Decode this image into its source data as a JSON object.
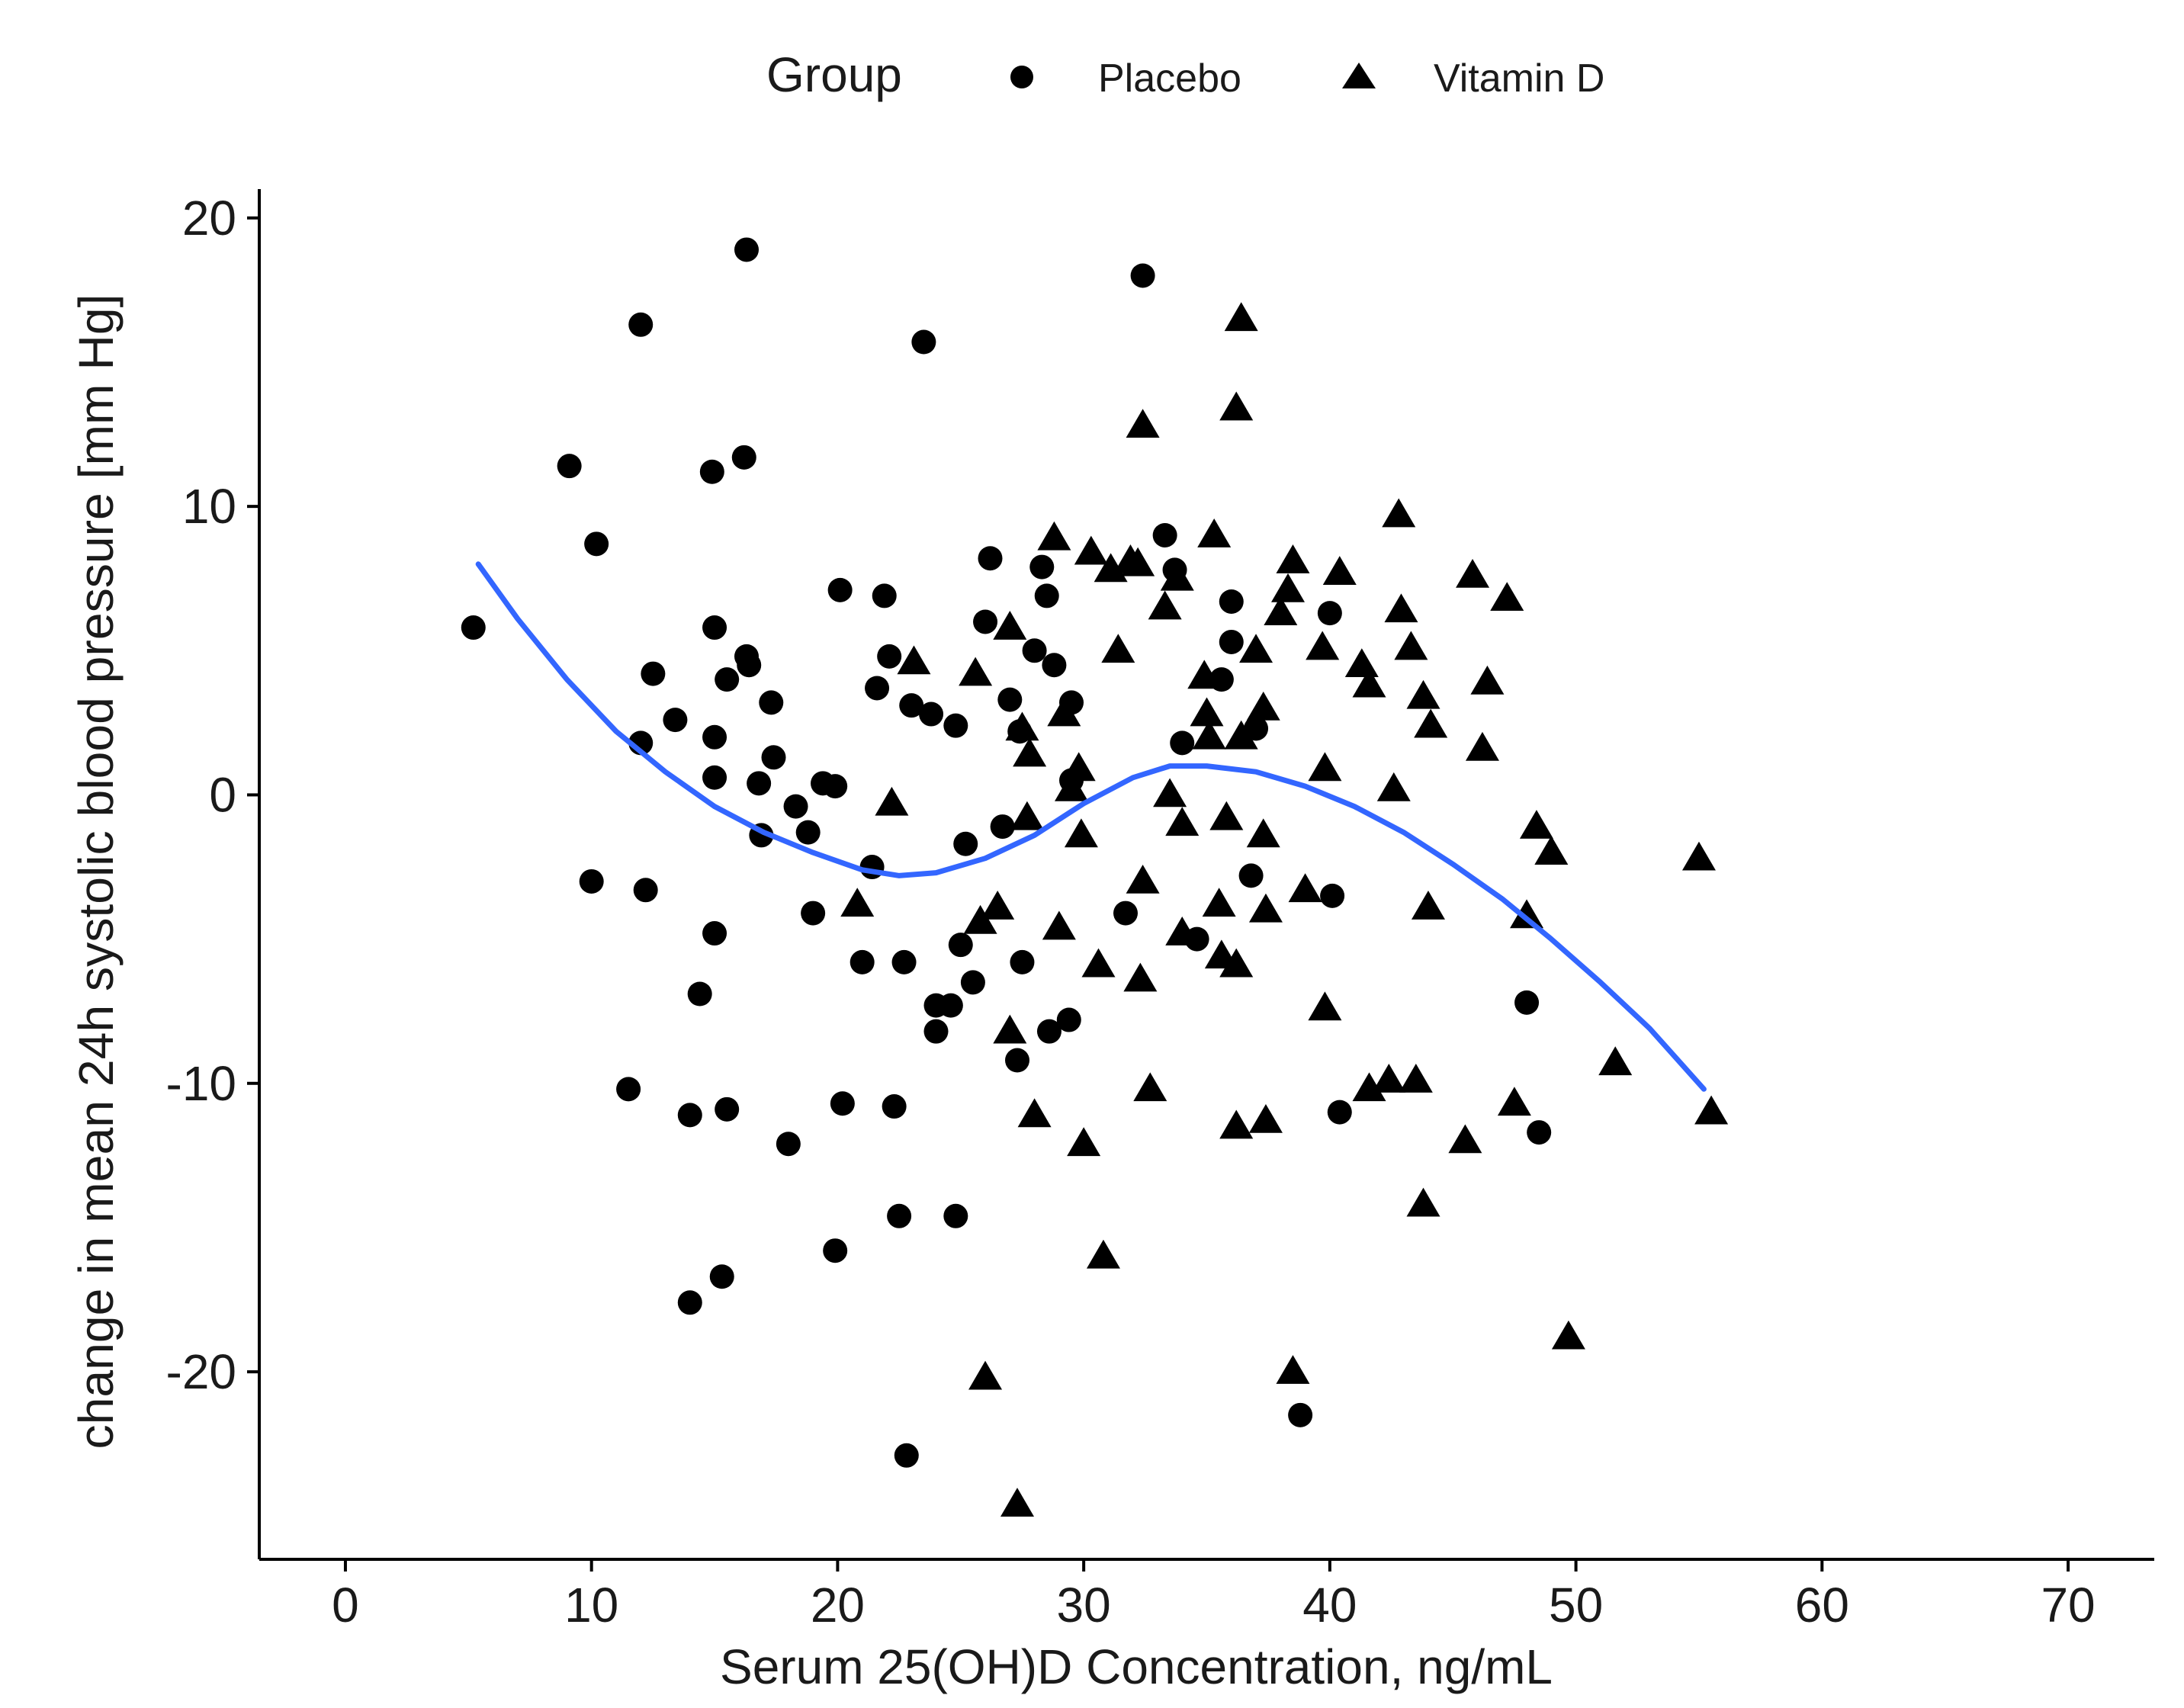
{
  "chart_data": {
    "type": "scatter",
    "title": "",
    "xlabel": "Serum 25(OH)D Concentration, ng/mL",
    "ylabel": "change in mean 24h systolic blood pressure [mm Hg]",
    "xlim": [
      -3.5,
      73.5
    ],
    "ylim": [
      -26.5,
      21
    ],
    "x_ticks": [
      0,
      10,
      20,
      30,
      40,
      50,
      60,
      70
    ],
    "y_ticks": [
      20,
      10,
      0,
      -10,
      -20
    ],
    "x_tick_labels": [
      "0",
      "10",
      "20",
      "30",
      "40",
      "50",
      "60",
      "70"
    ],
    "y_tick_labels": [
      "20",
      "10",
      "0",
      "-10",
      "-20"
    ],
    "grid": false,
    "legend": {
      "title": "Group",
      "position": "top",
      "entries": [
        {
          "label": "Placebo",
          "marker": "circle"
        },
        {
          "label": "Vitamin D",
          "marker": "triangle"
        }
      ]
    },
    "series": [
      {
        "name": "Placebo",
        "marker": "circle",
        "color": "#000000",
        "points": [
          [
            5.2,
            5.8
          ],
          [
            9.1,
            11.4
          ],
          [
            10.2,
            8.7
          ],
          [
            10.0,
            -3.0
          ],
          [
            11.5,
            -10.2
          ],
          [
            12.0,
            16.3
          ],
          [
            12.0,
            1.8
          ],
          [
            12.2,
            -3.3
          ],
          [
            12.5,
            4.2
          ],
          [
            13.4,
            2.6
          ],
          [
            14.0,
            -11.1
          ],
          [
            14.0,
            -17.6
          ],
          [
            14.4,
            -6.9
          ],
          [
            14.9,
            11.2
          ],
          [
            15.0,
            5.8
          ],
          [
            15.0,
            2.0
          ],
          [
            15.0,
            0.6
          ],
          [
            15.0,
            -4.8
          ],
          [
            15.3,
            -16.7
          ],
          [
            15.5,
            4.0
          ],
          [
            15.5,
            -10.9
          ],
          [
            16.2,
            11.7
          ],
          [
            16.3,
            18.9
          ],
          [
            16.3,
            4.8
          ],
          [
            16.4,
            4.5
          ],
          [
            16.8,
            0.4
          ],
          [
            16.9,
            -1.4
          ],
          [
            17.3,
            3.2
          ],
          [
            17.4,
            1.3
          ],
          [
            18.0,
            -12.1
          ],
          [
            18.3,
            -0.4
          ],
          [
            18.8,
            -1.3
          ],
          [
            19.0,
            -4.1
          ],
          [
            19.4,
            0.4
          ],
          [
            19.9,
            0.3
          ],
          [
            19.9,
            -15.8
          ],
          [
            20.1,
            7.1
          ],
          [
            20.2,
            -10.7
          ],
          [
            21.0,
            -5.8
          ],
          [
            21.4,
            -2.5
          ],
          [
            21.6,
            3.7
          ],
          [
            21.9,
            6.9
          ],
          [
            22.1,
            4.8
          ],
          [
            22.3,
            -10.8
          ],
          [
            22.5,
            -14.6
          ],
          [
            22.7,
            -5.8
          ],
          [
            22.8,
            -22.9
          ],
          [
            23.0,
            3.1
          ],
          [
            23.5,
            15.7
          ],
          [
            23.8,
            2.8
          ],
          [
            24.0,
            -7.3
          ],
          [
            24.0,
            -8.2
          ],
          [
            24.6,
            -7.3
          ],
          [
            24.8,
            2.4
          ],
          [
            24.8,
            -14.6
          ],
          [
            25.0,
            -5.2
          ],
          [
            25.2,
            -1.7
          ],
          [
            25.5,
            -6.5
          ],
          [
            26.0,
            6.0
          ],
          [
            26.2,
            8.2
          ],
          [
            26.7,
            -1.1
          ],
          [
            27.0,
            3.3
          ],
          [
            27.3,
            -9.2
          ],
          [
            27.4,
            2.2
          ],
          [
            27.5,
            -5.8
          ],
          [
            28.0,
            5.0
          ],
          [
            28.3,
            7.9
          ],
          [
            28.5,
            6.9
          ],
          [
            28.6,
            -8.2
          ],
          [
            28.8,
            4.5
          ],
          [
            29.4,
            -7.8
          ],
          [
            29.5,
            3.2
          ],
          [
            29.5,
            0.5
          ],
          [
            31.7,
            -4.1
          ],
          [
            32.4,
            18.0
          ],
          [
            33.3,
            9.0
          ],
          [
            33.7,
            7.8
          ],
          [
            34.0,
            1.8
          ],
          [
            34.6,
            -5.0
          ],
          [
            35.6,
            4.0
          ],
          [
            36.0,
            6.7
          ],
          [
            36.0,
            5.3
          ],
          [
            36.8,
            -2.8
          ],
          [
            37.0,
            2.3
          ],
          [
            40.0,
            6.3
          ],
          [
            40.1,
            -3.5
          ],
          [
            40.4,
            -11.0
          ],
          [
            38.8,
            -21.5
          ],
          [
            48.0,
            -7.2
          ],
          [
            48.5,
            -11.7
          ]
        ]
      },
      {
        "name": "Vitamin D",
        "marker": "triangle",
        "color": "#000000",
        "points": [
          [
            20.8,
            -3.8
          ],
          [
            22.2,
            -0.3
          ],
          [
            23.1,
            4.6
          ],
          [
            25.6,
            4.2
          ],
          [
            25.8,
            -4.4
          ],
          [
            26.0,
            -20.2
          ],
          [
            26.5,
            -3.9
          ],
          [
            27.0,
            -8.2
          ],
          [
            27.0,
            5.8
          ],
          [
            27.3,
            -24.6
          ],
          [
            27.5,
            2.3
          ],
          [
            27.7,
            -0.8
          ],
          [
            27.8,
            1.4
          ],
          [
            28.0,
            -11.1
          ],
          [
            28.8,
            8.9
          ],
          [
            29.0,
            -4.6
          ],
          [
            29.2,
            2.8
          ],
          [
            29.5,
            0.2
          ],
          [
            29.8,
            0.9
          ],
          [
            29.9,
            -1.4
          ],
          [
            30.0,
            -12.1
          ],
          [
            30.3,
            8.4
          ],
          [
            30.6,
            -5.9
          ],
          [
            30.8,
            -16.0
          ],
          [
            31.1,
            7.8
          ],
          [
            31.4,
            5.0
          ],
          [
            31.9,
            8.1
          ],
          [
            32.2,
            8.0
          ],
          [
            32.3,
            -6.4
          ],
          [
            32.4,
            -3.0
          ],
          [
            32.4,
            12.8
          ],
          [
            32.7,
            -10.2
          ],
          [
            33.3,
            6.5
          ],
          [
            33.5,
            0.0
          ],
          [
            33.8,
            7.5
          ],
          [
            34.0,
            -4.8
          ],
          [
            34.0,
            -1.0
          ],
          [
            34.9,
            4.1
          ],
          [
            35.0,
            2.8
          ],
          [
            35.1,
            2.0
          ],
          [
            35.3,
            9.0
          ],
          [
            35.5,
            -3.8
          ],
          [
            35.6,
            -5.6
          ],
          [
            35.8,
            -0.8
          ],
          [
            36.2,
            -5.9
          ],
          [
            36.2,
            13.4
          ],
          [
            36.2,
            -11.5
          ],
          [
            36.4,
            16.5
          ],
          [
            36.4,
            2.0
          ],
          [
            37.0,
            5.0
          ],
          [
            37.3,
            3.0
          ],
          [
            37.3,
            -1.4
          ],
          [
            37.4,
            -4.0
          ],
          [
            37.4,
            -11.3
          ],
          [
            38.0,
            6.3
          ],
          [
            38.3,
            7.1
          ],
          [
            38.5,
            8.1
          ],
          [
            38.5,
            -20.0
          ],
          [
            39.0,
            -3.3
          ],
          [
            39.7,
            5.1
          ],
          [
            39.8,
            0.9
          ],
          [
            39.8,
            -7.4
          ],
          [
            40.4,
            7.7
          ],
          [
            41.3,
            4.5
          ],
          [
            41.6,
            3.8
          ],
          [
            41.6,
            -10.2
          ],
          [
            42.4,
            -9.9
          ],
          [
            42.6,
            0.2
          ],
          [
            42.8,
            9.7
          ],
          [
            42.9,
            6.4
          ],
          [
            43.3,
            5.1
          ],
          [
            43.5,
            -9.9
          ],
          [
            43.8,
            3.4
          ],
          [
            43.8,
            -14.2
          ],
          [
            44.0,
            -3.9
          ],
          [
            44.1,
            2.4
          ],
          [
            45.5,
            -12.0
          ],
          [
            45.8,
            7.6
          ],
          [
            46.2,
            1.6
          ],
          [
            46.4,
            3.9
          ],
          [
            47.2,
            6.8
          ],
          [
            47.5,
            -10.7
          ],
          [
            48.0,
            -4.2
          ],
          [
            48.4,
            -1.1
          ],
          [
            49.0,
            -2.0
          ],
          [
            49.7,
            -18.8
          ],
          [
            51.6,
            -9.3
          ],
          [
            55.0,
            -2.2
          ],
          [
            55.5,
            -11.0
          ]
        ]
      },
      {
        "name": "",
        "type": "line",
        "color": "#3366ff",
        "points": [
          [
            5.4,
            8.0
          ],
          [
            7.0,
            6.1
          ],
          [
            9.0,
            4.0
          ],
          [
            11.0,
            2.2
          ],
          [
            13.0,
            0.8
          ],
          [
            15.0,
            -0.4
          ],
          [
            17.0,
            -1.3
          ],
          [
            19.0,
            -2.0
          ],
          [
            21.0,
            -2.6
          ],
          [
            22.5,
            -2.8
          ],
          [
            24.0,
            -2.7
          ],
          [
            26.0,
            -2.2
          ],
          [
            28.0,
            -1.4
          ],
          [
            30.0,
            -0.3
          ],
          [
            32.0,
            0.6
          ],
          [
            33.5,
            1.0
          ],
          [
            35.0,
            1.0
          ],
          [
            37.0,
            0.8
          ],
          [
            39.0,
            0.3
          ],
          [
            41.0,
            -0.4
          ],
          [
            43.0,
            -1.3
          ],
          [
            45.0,
            -2.4
          ],
          [
            47.0,
            -3.6
          ],
          [
            49.0,
            -5.0
          ],
          [
            51.0,
            -6.5
          ],
          [
            53.0,
            -8.1
          ],
          [
            55.2,
            -10.2
          ]
        ]
      }
    ]
  }
}
